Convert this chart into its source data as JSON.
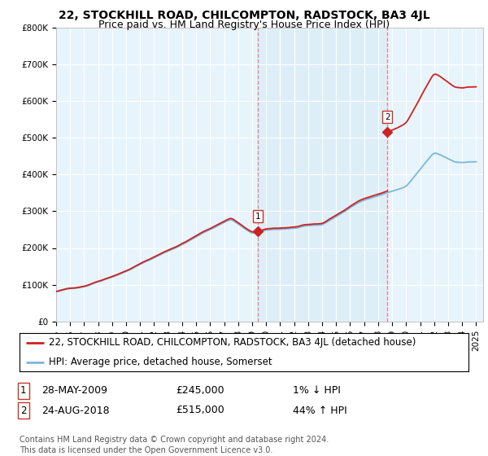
{
  "title": "22, STOCKHILL ROAD, CHILCOMPTON, RADSTOCK, BA3 4JL",
  "subtitle": "Price paid vs. HM Land Registry's House Price Index (HPI)",
  "ylim": [
    0,
    800000
  ],
  "yticks": [
    0,
    100000,
    200000,
    300000,
    400000,
    500000,
    600000,
    700000,
    800000
  ],
  "ytick_labels": [
    "£0",
    "£100K",
    "£200K",
    "£300K",
    "£400K",
    "£500K",
    "£600K",
    "£700K",
    "£800K"
  ],
  "hpi_color": "#7ab8d9",
  "price_color": "#cc2222",
  "marker_color": "#cc2222",
  "shade_color": "#ddeef8",
  "vline_color": "#e08080",
  "sale1_year": 2009.41,
  "sale1_price": 245000,
  "sale1_label": "1",
  "sale2_year": 2018.65,
  "sale2_price": 515000,
  "sale2_label": "2",
  "legend_line1": "22, STOCKHILL ROAD, CHILCOMPTON, RADSTOCK, BA3 4JL (detached house)",
  "legend_line2": "HPI: Average price, detached house, Somerset",
  "table_row1_num": "1",
  "table_row1_date": "28-MAY-2009",
  "table_row1_price": "£245,000",
  "table_row1_hpi": "1% ↓ HPI",
  "table_row2_num": "2",
  "table_row2_date": "24-AUG-2018",
  "table_row2_price": "£515,000",
  "table_row2_hpi": "44% ↑ HPI",
  "footer": "Contains HM Land Registry data © Crown copyright and database right 2024.\nThis data is licensed under the Open Government Licence v3.0.",
  "bg_color": "#ffffff",
  "plot_bg_color": "#e8f4fc",
  "grid_color": "#ffffff",
  "title_fontsize": 10,
  "subtitle_fontsize": 9,
  "tick_fontsize": 7.5,
  "legend_fontsize": 8.5,
  "table_fontsize": 9,
  "footer_fontsize": 7
}
